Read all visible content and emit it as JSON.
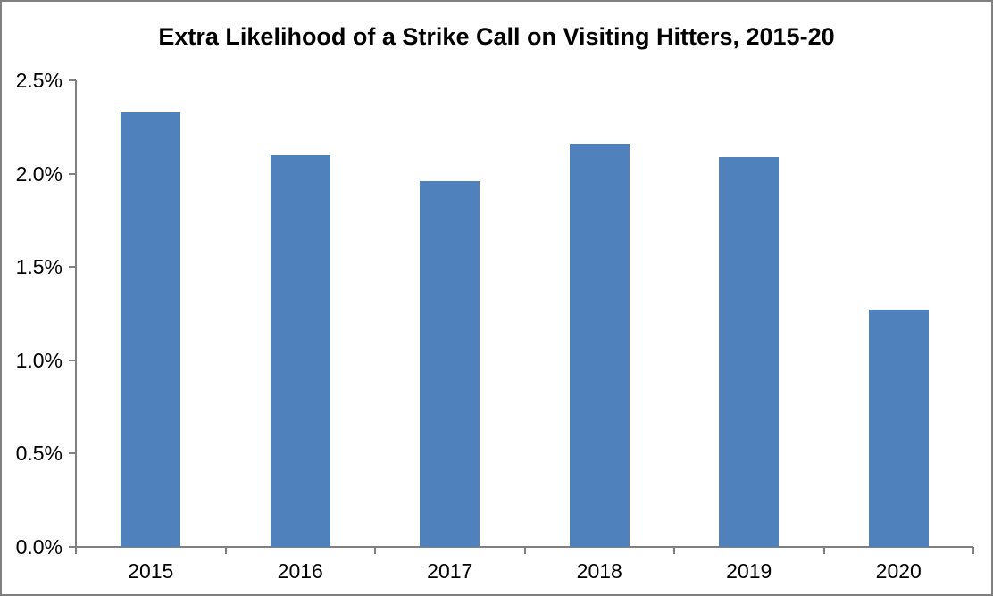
{
  "chart_data": {
    "type": "bar",
    "title": "Extra Likelihood of a Strike Call on Visiting Hitters, 2015-20",
    "categories": [
      "2015",
      "2016",
      "2017",
      "2018",
      "2019",
      "2020"
    ],
    "values": [
      2.33,
      2.1,
      1.96,
      2.16,
      2.09,
      1.27
    ],
    "value_unit": "%",
    "xlabel": "",
    "ylabel": "",
    "ylim": [
      0.0,
      2.5
    ],
    "y_tick_labels": [
      "0.0%",
      "0.5%",
      "1.0%",
      "1.5%",
      "2.0%",
      "2.5%"
    ],
    "y_tick_values": [
      0.0,
      0.5,
      1.0,
      1.5,
      2.0,
      2.5
    ],
    "grid": false,
    "legend": "none",
    "bar_color": "#4F81BD",
    "axis_color": "#808080",
    "text_color": "#000000",
    "background_color": "#ffffff"
  }
}
